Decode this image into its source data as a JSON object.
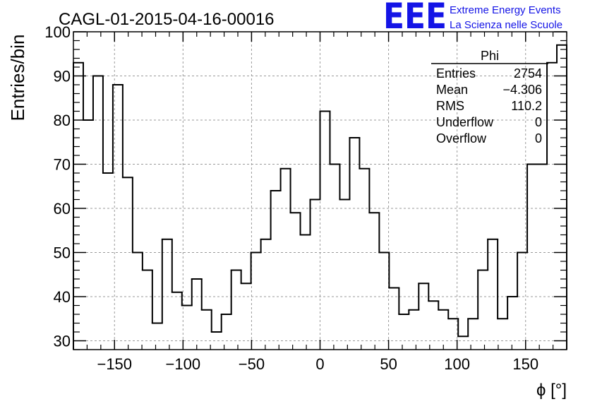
{
  "colors": {
    "histogram": "#000000",
    "grid": "#9a9a9a",
    "logo": "#1414e6"
  },
  "logo": {
    "text": "EEE",
    "line1": "Extreme Energy Events",
    "line2": "La Scienza nelle Scuole"
  },
  "stats": {
    "title": "Phi",
    "rows": [
      {
        "label": "Entries",
        "value": "2754"
      },
      {
        "label": "Mean",
        "value": "−4.306"
      },
      {
        "label": "RMS",
        "value": "110.2"
      },
      {
        "label": "Underflow",
        "value": "0"
      },
      {
        "label": "Overflow",
        "value": "0"
      }
    ]
  },
  "chart_data": {
    "type": "histogram",
    "title": "CAGL-01-2015-04-16-00016",
    "xlabel": "ϕ [°]",
    "ylabel": "Entries/bin",
    "xlim": [
      -180,
      180
    ],
    "ylim": [
      28,
      100
    ],
    "grid": true,
    "bin_edges": [
      -180,
      -172.8,
      -165.6,
      -158.4,
      -151.2,
      -144,
      -136.8,
      -129.6,
      -122.4,
      -115.2,
      -108,
      -100.8,
      -93.6,
      -86.4,
      -79.2,
      -72,
      -64.8,
      -57.6,
      -50.4,
      -43.2,
      -36,
      -28.8,
      -21.6,
      -14.4,
      -7.2,
      0,
      7.2,
      14.4,
      21.6,
      28.8,
      36,
      43.2,
      50.4,
      57.6,
      64.8,
      72,
      79.2,
      86.4,
      93.6,
      100.8,
      108,
      115.2,
      122.4,
      129.6,
      136.8,
      144,
      151.2,
      158.4,
      165.6,
      172.8,
      180
    ],
    "values": [
      93,
      80,
      90,
      68,
      88,
      67,
      50,
      46,
      34,
      53,
      41,
      38,
      44,
      37,
      32,
      36,
      46,
      43,
      50,
      53,
      64,
      69,
      59,
      54,
      62,
      82,
      70,
      62,
      76,
      69,
      59,
      50,
      42,
      36,
      37,
      43,
      39,
      37,
      35,
      31,
      35,
      46,
      53,
      35,
      40,
      50,
      70,
      70,
      93,
      97
    ],
    "xticks": [
      -150,
      -100,
      -50,
      0,
      50,
      100,
      150
    ],
    "yticks": [
      30,
      40,
      50,
      60,
      70,
      80,
      90,
      100
    ]
  }
}
